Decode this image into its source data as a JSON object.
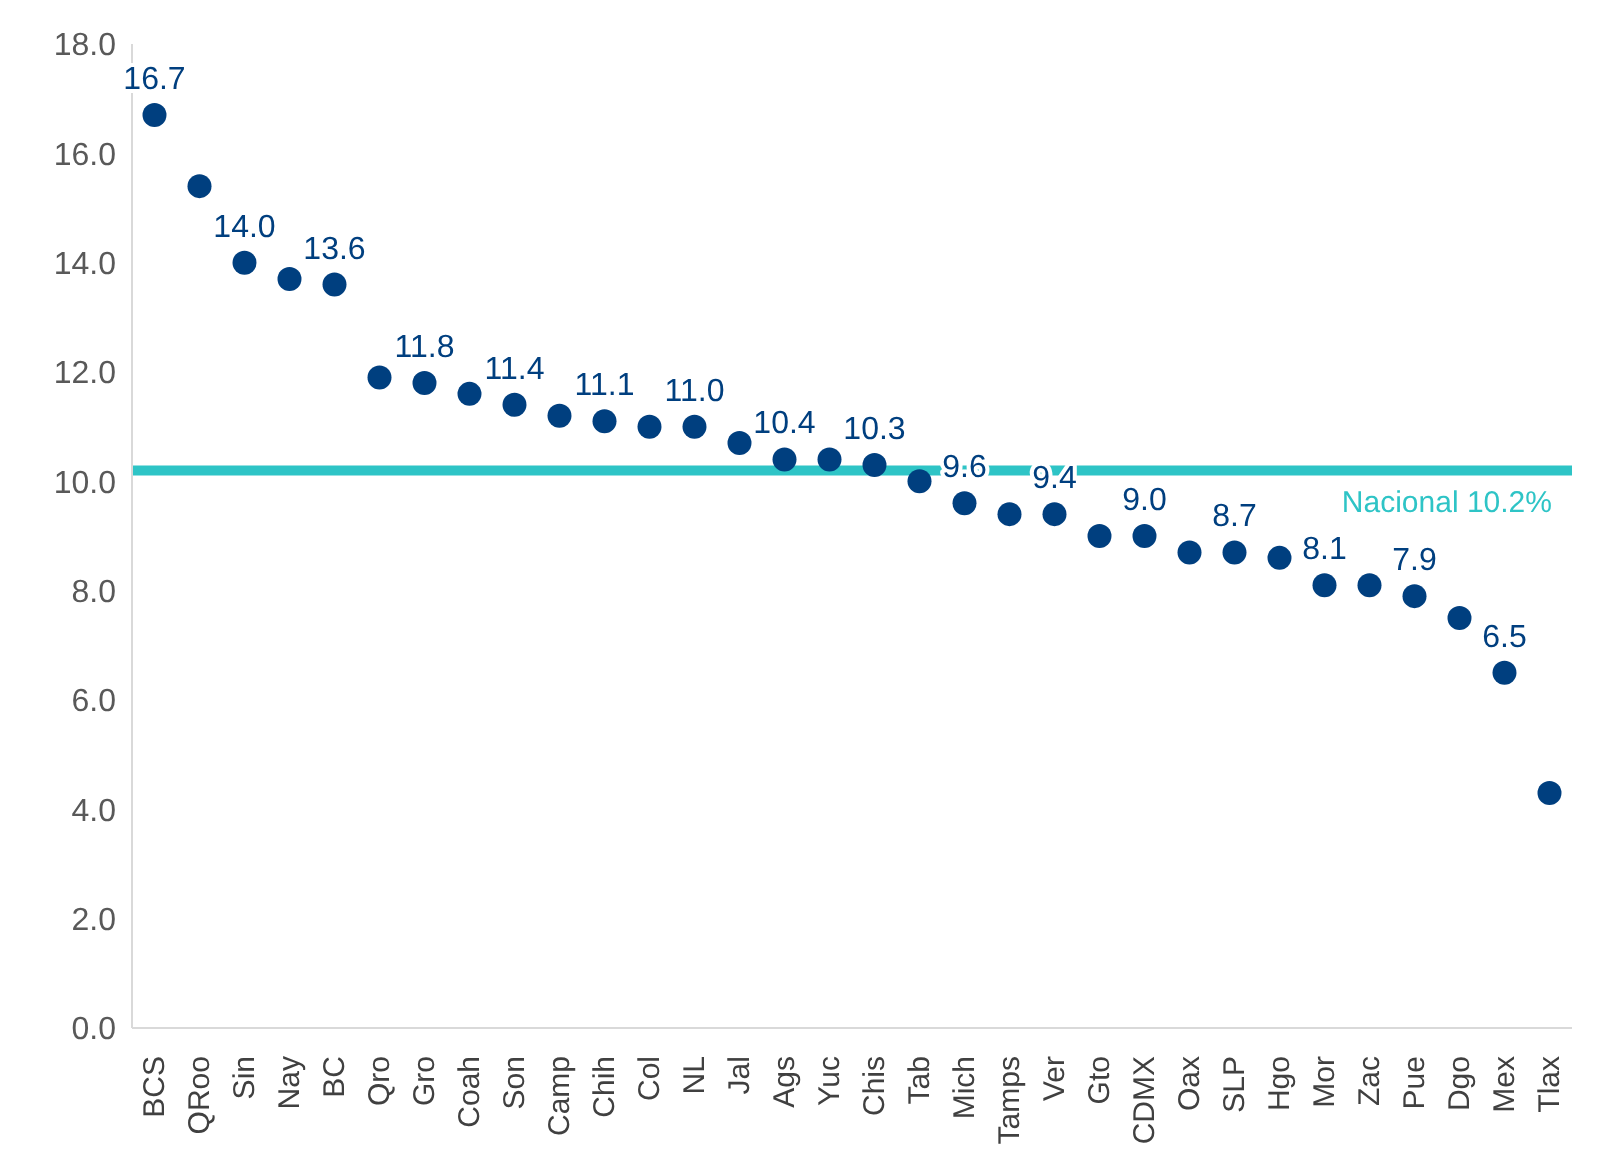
{
  "chart_data": {
    "type": "scatter",
    "categories": [
      "BCS",
      "QRoo",
      "Sin",
      "Nay",
      "BC",
      "Qro",
      "Gro",
      "Coah",
      "Son",
      "Camp",
      "Chih",
      "Col",
      "NL",
      "Jal",
      "Ags",
      "Yuc",
      "Chis",
      "Tab",
      "Mich",
      "Tamps",
      "Ver",
      "Gto",
      "CDMX",
      "Oax",
      "SLP",
      "Hgo",
      "Mor",
      "Zac",
      "Pue",
      "Dgo",
      "Mex",
      "Tlax"
    ],
    "series": [
      {
        "color": "#003f7f",
        "values": [
          16.7,
          15.4,
          14.0,
          13.7,
          13.6,
          11.9,
          11.8,
          11.6,
          11.4,
          11.2,
          11.1,
          11.0,
          11.0,
          10.7,
          10.4,
          10.4,
          10.3,
          10.0,
          9.6,
          9.4,
          9.4,
          9.0,
          9.0,
          8.7,
          8.7,
          8.6,
          8.1,
          8.1,
          7.9,
          7.5,
          6.5,
          4.3
        ],
        "value_labels": [
          "16.7",
          null,
          "14.0",
          null,
          "13.6",
          null,
          "11.8",
          null,
          "11.4",
          null,
          "11.1",
          null,
          "11.0",
          null,
          "10.4",
          null,
          "10.3",
          null,
          "9.6",
          null,
          "9.4",
          null,
          "9.0",
          null,
          "8.7",
          null,
          "8.1",
          null,
          "7.9",
          null,
          "6.5",
          null
        ]
      }
    ],
    "ylim": [
      0,
      18
    ],
    "yticks": [
      {
        "value": 0,
        "label": "0.0"
      },
      {
        "value": 2,
        "label": "2.0"
      },
      {
        "value": 4,
        "label": "4.0"
      },
      {
        "value": 6,
        "label": "6.0"
      },
      {
        "value": 8,
        "label": "8.0"
      },
      {
        "value": 10,
        "label": "10.0"
      },
      {
        "value": 12,
        "label": "12.0"
      },
      {
        "value": 14,
        "label": "14.0"
      },
      {
        "value": 16,
        "label": "16.0"
      },
      {
        "value": 18,
        "label": "18.0"
      }
    ],
    "ref_lines": [
      {
        "axis": "y",
        "value": 10.2,
        "label": "Nacional 10.2%",
        "color": "#2ec4c6"
      }
    ],
    "marker": "circle",
    "grid": false,
    "legend": false
  }
}
